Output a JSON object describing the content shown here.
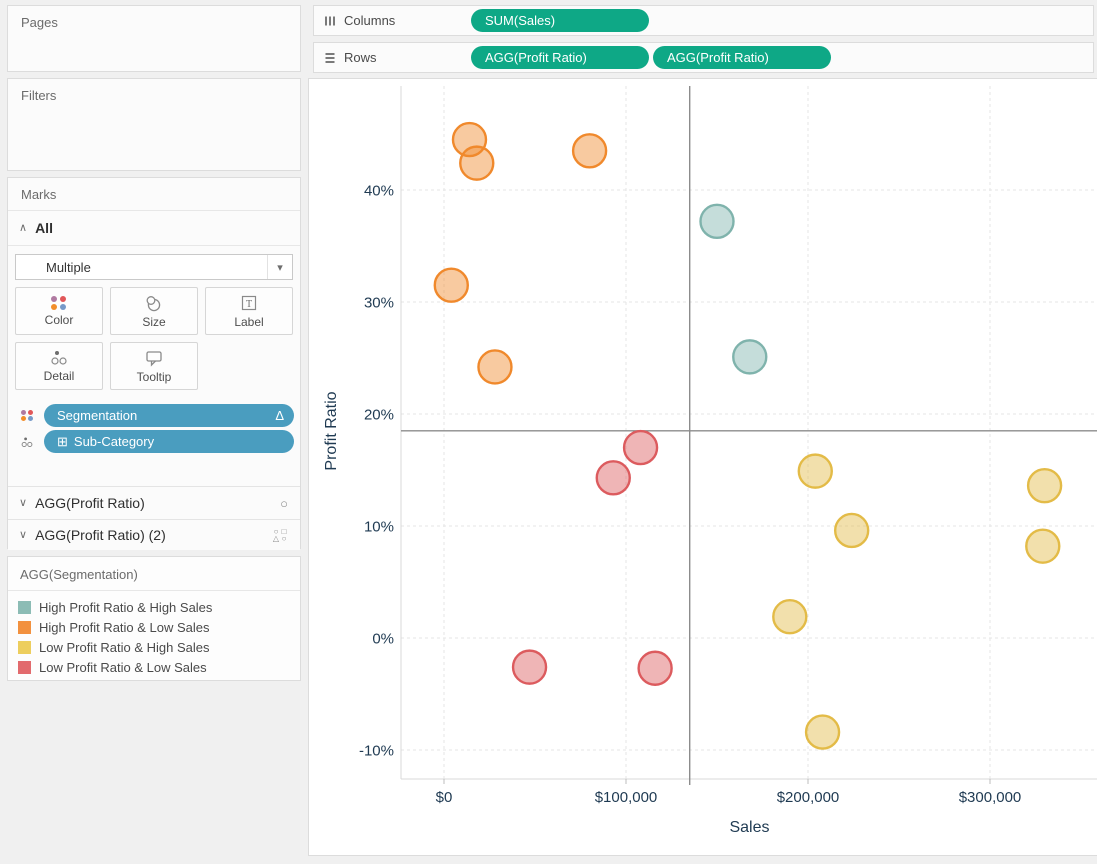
{
  "panels": {
    "pages_title": "Pages",
    "filters_title": "Filters",
    "marks": {
      "title": "Marks",
      "card_label": "All",
      "mark_type": "Multiple",
      "buttons": [
        "Color",
        "Size",
        "Label",
        "Detail",
        "Tooltip"
      ],
      "pills": [
        {
          "label": "Segmentation",
          "suffix_icon": "Δ"
        },
        {
          "label": "Sub-Category",
          "prefix_icon": "⊞"
        }
      ],
      "agg_rows": [
        "AGG(Profit Ratio)",
        "AGG(Profit Ratio) (2)"
      ]
    },
    "legend": {
      "title": "AGG(Segmentation)",
      "items": [
        {
          "label": "High Profit Ratio & High Sales",
          "color": "#8CBCB5"
        },
        {
          "label": "High Profit Ratio & Low Sales",
          "color": "#F2913F"
        },
        {
          "label": "Low Profit Ratio & High Sales",
          "color": "#EDCE5E"
        },
        {
          "label": "Low Profit Ratio & Low Sales",
          "color": "#E26A6D"
        }
      ]
    }
  },
  "shelves": {
    "columns_label": "Columns",
    "rows_label": "Rows",
    "columns_pills": [
      "SUM(Sales)"
    ],
    "rows_pills": [
      "AGG(Profit Ratio)",
      "AGG(Profit Ratio)"
    ]
  },
  "icons": {
    "collapse_chevron": "∧",
    "expand_chevron": "∨",
    "dropdown_arrow": "▾",
    "delta": "Δ",
    "expand_box": "⊞",
    "circle_mark": "○",
    "shape_grid": [
      "○",
      "□",
      "△",
      "○"
    ],
    "color_dot_colors": [
      "#B07AA1",
      "#E15759",
      "#F28E2B",
      "#7699C8"
    ]
  },
  "chart_data": {
    "type": "scatter",
    "xlabel": "Sales",
    "ylabel": "Profit Ratio",
    "x_ticks": [
      {
        "value": 0,
        "label": "$0"
      },
      {
        "value": 100000,
        "label": "$100,000"
      },
      {
        "value": 200000,
        "label": "$200,000"
      },
      {
        "value": 300000,
        "label": "$300,000"
      }
    ],
    "y_ticks": [
      {
        "value": 40,
        "label": "40%"
      },
      {
        "value": 30,
        "label": "30%"
      },
      {
        "value": 20,
        "label": "20%"
      },
      {
        "value": 10,
        "label": "10%"
      },
      {
        "value": 0,
        "label": "0%"
      },
      {
        "value": -10,
        "label": "-10%"
      }
    ],
    "x_range": [
      -24000,
      359000
    ],
    "y_range": [
      -12.5,
      49.3
    ],
    "grid": true,
    "legend_position": "left-panel",
    "reference_lines": {
      "x": 135000,
      "y": 18.5
    },
    "series": [
      {
        "name": "High Profit Ratio & High Sales",
        "color": "#7FB3AC",
        "points": [
          {
            "sales": 150000,
            "profit_ratio": 37.2
          },
          {
            "sales": 168000,
            "profit_ratio": 25.1
          }
        ]
      },
      {
        "name": "High Profit Ratio & Low Sales",
        "color": "#F0892C",
        "points": [
          {
            "sales": 14000,
            "profit_ratio": 44.5
          },
          {
            "sales": 18000,
            "profit_ratio": 42.4
          },
          {
            "sales": 80000,
            "profit_ratio": 43.5
          },
          {
            "sales": 4000,
            "profit_ratio": 31.5
          },
          {
            "sales": 28000,
            "profit_ratio": 24.2
          }
        ]
      },
      {
        "name": "Low Profit Ratio & High Sales",
        "color": "#E3BB47",
        "points": [
          {
            "sales": 204000,
            "profit_ratio": 14.9
          },
          {
            "sales": 224000,
            "profit_ratio": 9.6
          },
          {
            "sales": 330000,
            "profit_ratio": 13.6
          },
          {
            "sales": 329000,
            "profit_ratio": 8.2
          },
          {
            "sales": 190000,
            "profit_ratio": 1.9
          },
          {
            "sales": 208000,
            "profit_ratio": -8.4
          }
        ]
      },
      {
        "name": "Low Profit Ratio & Low Sales",
        "color": "#DC5B5E",
        "points": [
          {
            "sales": 108000,
            "profit_ratio": 17.0
          },
          {
            "sales": 93000,
            "profit_ratio": 14.3
          },
          {
            "sales": 47000,
            "profit_ratio": -2.6
          },
          {
            "sales": 116000,
            "profit_ratio": -2.7
          }
        ]
      }
    ]
  }
}
